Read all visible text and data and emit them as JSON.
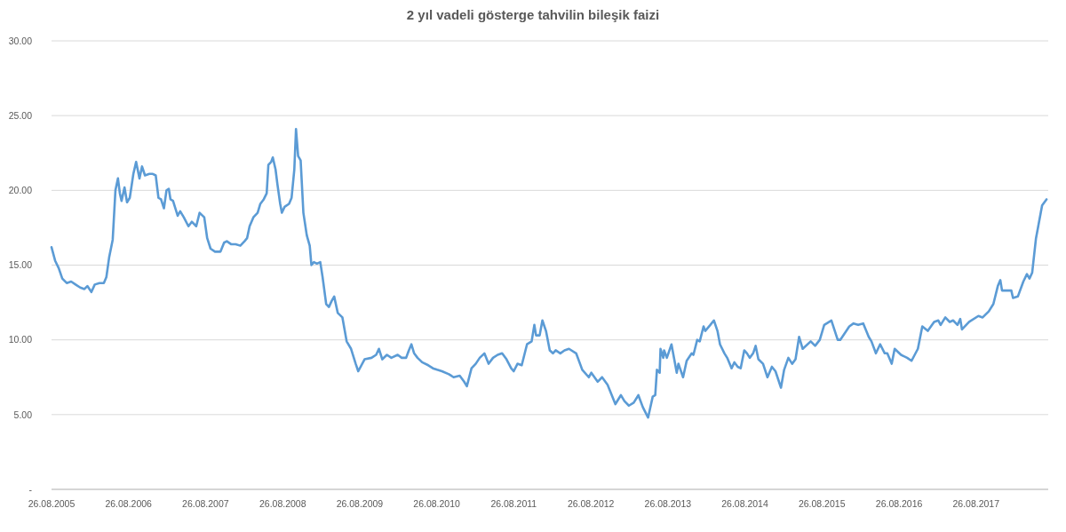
{
  "chart_data": {
    "type": "line",
    "title": "2 yıl vadeli gösterge tahvilin bileşik faizi",
    "x": [
      "2005-08-26",
      "2005-09-12",
      "2005-09-29",
      "2005-10-16",
      "2005-11-06",
      "2005-11-27",
      "2005-12-18",
      "2006-01-09",
      "2006-01-29",
      "2006-02-12",
      "2006-03-03",
      "2006-03-19",
      "2006-04-10",
      "2006-05-01",
      "2006-05-13",
      "2006-05-26",
      "2006-06-12",
      "2006-06-25",
      "2006-07-07",
      "2006-07-16",
      "2006-07-24",
      "2006-08-07",
      "2006-08-19",
      "2006-09-01",
      "2006-09-18",
      "2006-10-01",
      "2006-10-17",
      "2006-10-29",
      "2006-11-12",
      "2006-12-03",
      "2006-12-19",
      "2007-01-02",
      "2007-01-15",
      "2007-01-27",
      "2007-02-10",
      "2007-02-22",
      "2007-03-05",
      "2007-03-13",
      "2007-03-25",
      "2007-04-16",
      "2007-04-28",
      "2007-05-15",
      "2007-06-06",
      "2007-06-22",
      "2007-07-13",
      "2007-07-29",
      "2007-08-20",
      "2007-09-03",
      "2007-09-19",
      "2007-10-10",
      "2007-11-05",
      "2007-11-22",
      "2007-12-05",
      "2007-12-25",
      "2008-01-16",
      "2008-02-07",
      "2008-02-27",
      "2008-03-10",
      "2008-03-22",
      "2008-04-09",
      "2008-04-29",
      "2008-05-12",
      "2008-05-28",
      "2008-06-11",
      "2008-06-19",
      "2008-07-02",
      "2008-07-10",
      "2008-07-23",
      "2008-08-01",
      "2008-08-14",
      "2008-08-22",
      "2008-09-04",
      "2008-09-25",
      "2008-10-07",
      "2008-10-20",
      "2008-10-28",
      "2008-11-07",
      "2008-11-19",
      "2008-12-02",
      "2008-12-18",
      "2009-01-01",
      "2009-01-09",
      "2009-01-21",
      "2009-02-04",
      "2009-02-20",
      "2009-03-03",
      "2009-03-20",
      "2009-04-02",
      "2009-04-15",
      "2009-04-27",
      "2009-05-14",
      "2009-06-05",
      "2009-06-25",
      "2009-07-16",
      "2009-08-07",
      "2009-08-19",
      "2009-09-18",
      "2009-10-21",
      "2009-11-12",
      "2009-11-25",
      "2009-12-11",
      "2010-01-02",
      "2010-01-23",
      "2010-02-22",
      "2010-03-13",
      "2010-04-03",
      "2010-04-16",
      "2010-04-28",
      "2010-05-11",
      "2010-05-27",
      "2010-06-18",
      "2010-07-17",
      "2010-08-08",
      "2010-08-28",
      "2010-09-20",
      "2010-10-23",
      "2010-11-14",
      "2010-12-13",
      "2011-01-03",
      "2011-01-16",
      "2011-02-07",
      "2011-02-27",
      "2011-03-18",
      "2011-04-09",
      "2011-04-29",
      "2011-05-20",
      "2011-06-11",
      "2011-07-02",
      "2011-07-23",
      "2011-08-14",
      "2011-08-26",
      "2011-09-13",
      "2011-10-03",
      "2011-10-28",
      "2011-11-19",
      "2011-12-02",
      "2011-12-10",
      "2011-12-27",
      "2012-01-09",
      "2012-01-26",
      "2012-02-13",
      "2012-02-28",
      "2012-03-12",
      "2012-04-03",
      "2012-04-23",
      "2012-05-14",
      "2012-06-17",
      "2012-07-16",
      "2012-08-16",
      "2012-08-28",
      "2012-09-27",
      "2012-10-18",
      "2012-11-13",
      "2012-12-20",
      "2013-01-15",
      "2013-02-01",
      "2013-02-22",
      "2013-03-17",
      "2013-04-08",
      "2013-04-29",
      "2013-05-24",
      "2013-06-15",
      "2013-06-27",
      "2013-07-05",
      "2013-07-18",
      "2013-07-22",
      "2013-08-04",
      "2013-08-08",
      "2013-08-21",
      "2013-09-12",
      "2013-10-07",
      "2013-10-15",
      "2013-11-06",
      "2013-11-23",
      "2013-12-17",
      "2013-12-25",
      "2014-01-12",
      "2014-01-24",
      "2014-02-11",
      "2014-02-19",
      "2014-03-15",
      "2014-04-01",
      "2014-04-18",
      "2014-04-30",
      "2014-05-21",
      "2014-06-03",
      "2014-06-24",
      "2014-07-07",
      "2014-07-23",
      "2014-08-06",
      "2014-08-23",
      "2014-09-05",
      "2014-09-18",
      "2014-10-04",
      "2014-10-16",
      "2014-10-29",
      "2014-11-20",
      "2014-12-11",
      "2015-01-01",
      "2015-01-18",
      "2015-02-13",
      "2015-02-28",
      "2015-03-20",
      "2015-04-07",
      "2015-04-23",
      "2015-05-10",
      "2015-05-27",
      "2015-07-04",
      "2015-07-25",
      "2015-08-16",
      "2015-09-06",
      "2015-10-10",
      "2015-11-09",
      "2015-11-21",
      "2015-12-20",
      "2016-01-03",
      "2016-01-23",
      "2016-02-14",
      "2016-03-09",
      "2016-04-04",
      "2016-04-17",
      "2016-05-08",
      "2016-05-28",
      "2016-06-19",
      "2016-07-01",
      "2016-07-22",
      "2016-08-05",
      "2016-09-04",
      "2016-10-03",
      "2016-10-24",
      "2016-11-23",
      "2016-12-14",
      "2017-01-09",
      "2017-02-08",
      "2017-02-28",
      "2017-03-11",
      "2017-04-02",
      "2017-04-23",
      "2017-05-09",
      "2017-05-30",
      "2017-06-12",
      "2017-06-20",
      "2017-07-24",
      "2017-09-06",
      "2017-09-26",
      "2017-10-25",
      "2017-11-16",
      "2017-12-07",
      "2017-12-19",
      "2017-12-27",
      "2018-02-09",
      "2018-02-17",
      "2018-03-12",
      "2018-04-07",
      "2018-04-24",
      "2018-05-06",
      "2018-05-19",
      "2018-06-06",
      "2018-06-18",
      "2018-07-05",
      "2018-07-26"
    ],
    "series": [
      {
        "color": "#5b9bd5",
        "values": [
          16.2,
          15.3,
          14.8,
          14.1,
          13.8,
          13.9,
          13.7,
          13.5,
          13.4,
          13.6,
          13.2,
          13.7,
          13.8,
          13.8,
          14.2,
          15.5,
          16.7,
          20.0,
          20.8,
          19.8,
          19.3,
          20.2,
          19.2,
          19.5,
          21.1,
          21.9,
          20.8,
          21.6,
          21.0,
          21.1,
          21.1,
          21.0,
          19.5,
          19.4,
          18.8,
          20.0,
          20.1,
          19.4,
          19.3,
          18.3,
          18.6,
          18.2,
          17.6,
          17.9,
          17.6,
          18.5,
          18.2,
          16.8,
          16.1,
          15.9,
          15.9,
          16.5,
          16.6,
          16.4,
          16.4,
          16.3,
          16.6,
          16.8,
          17.6,
          18.2,
          18.5,
          19.1,
          19.4,
          19.8,
          21.7,
          21.9,
          22.2,
          21.4,
          20.4,
          19.1,
          18.5,
          18.9,
          19.1,
          19.5,
          21.4,
          24.1,
          22.3,
          22.0,
          18.5,
          17.0,
          16.3,
          15.0,
          15.2,
          15.1,
          15.2,
          14.2,
          12.4,
          12.2,
          12.6,
          12.9,
          11.8,
          11.5,
          9.9,
          9.4,
          8.4,
          7.9,
          8.7,
          8.8,
          9.0,
          9.4,
          8.7,
          9.0,
          8.8,
          9.0,
          8.8,
          8.8,
          9.3,
          9.7,
          9.1,
          8.8,
          8.5,
          8.3,
          8.1,
          8.0,
          7.9,
          7.7,
          7.5,
          7.6,
          7.2,
          6.9,
          8.1,
          8.4,
          8.8,
          9.1,
          8.4,
          8.8,
          9.0,
          9.1,
          8.7,
          8.1,
          7.9,
          8.4,
          8.3,
          9.7,
          9.9,
          11.0,
          10.3,
          10.3,
          11.3,
          10.6,
          9.3,
          9.1,
          9.3,
          9.1,
          9.3,
          9.4,
          9.1,
          8.0,
          7.5,
          7.8,
          7.2,
          7.5,
          7.0,
          5.7,
          6.3,
          5.9,
          5.6,
          5.8,
          6.3,
          5.5,
          4.8,
          6.2,
          6.3,
          8.0,
          7.8,
          9.4,
          8.8,
          9.3,
          8.8,
          9.7,
          7.8,
          8.4,
          7.5,
          8.6,
          9.1,
          9.0,
          10.0,
          9.9,
          10.9,
          10.6,
          11.0,
          11.3,
          10.6,
          9.7,
          9.1,
          8.8,
          8.1,
          8.5,
          8.2,
          8.1,
          9.3,
          9.1,
          8.8,
          9.1,
          9.6,
          8.7,
          8.4,
          7.5,
          8.2,
          7.9,
          6.8,
          8.0,
          8.8,
          8.4,
          8.7,
          10.2,
          9.4,
          9.9,
          9.6,
          10.0,
          11.0,
          11.3,
          10.0,
          10.0,
          10.6,
          10.9,
          11.1,
          11.0,
          11.1,
          10.2,
          9.9,
          9.1,
          9.7,
          9.1,
          9.1,
          8.4,
          9.4,
          9.0,
          8.8,
          8.6,
          9.4,
          10.9,
          10.6,
          11.2,
          11.3,
          11.0,
          11.5,
          11.2,
          11.3,
          11.0,
          11.4,
          10.7,
          11.2,
          11.6,
          11.5,
          11.9,
          12.4,
          13.6,
          14.0,
          13.3,
          13.3,
          12.8,
          12.9,
          13.9,
          14.4,
          14.1,
          14.5,
          16.8,
          17.7,
          19.0,
          19.4
        ]
      }
    ],
    "xlim": [
      "2005-08-26",
      "2018-08-03"
    ],
    "xticks": [
      {
        "value": "2005-08-26",
        "label": "26.08.2005"
      },
      {
        "value": "2006-08-26",
        "label": "26.08.2006"
      },
      {
        "value": "2007-08-26",
        "label": "26.08.2007"
      },
      {
        "value": "2008-08-26",
        "label": "26.08.2008"
      },
      {
        "value": "2009-08-26",
        "label": "26.08.2009"
      },
      {
        "value": "2010-08-26",
        "label": "26.08.2010"
      },
      {
        "value": "2011-08-26",
        "label": "26.08.2011"
      },
      {
        "value": "2012-08-26",
        "label": "26.08.2012"
      },
      {
        "value": "2013-08-26",
        "label": "26.08.2013"
      },
      {
        "value": "2014-08-26",
        "label": "26.08.2014"
      },
      {
        "value": "2015-08-26",
        "label": "26.08.2015"
      },
      {
        "value": "2016-08-26",
        "label": "26.08.2016"
      },
      {
        "value": "2017-08-26",
        "label": "26.08.2017"
      }
    ],
    "ylim": [
      0,
      30
    ],
    "yticks": [
      {
        "value": 0,
        "label": "-"
      },
      {
        "value": 5,
        "label": "5.00"
      },
      {
        "value": 10,
        "label": "10.00"
      },
      {
        "value": 15,
        "label": "15.00"
      },
      {
        "value": 20,
        "label": "20.00"
      },
      {
        "value": 25,
        "label": "25.00"
      },
      {
        "value": 30,
        "label": "30.00"
      }
    ],
    "grid": "y",
    "marker": "none",
    "line_style": "solid"
  }
}
